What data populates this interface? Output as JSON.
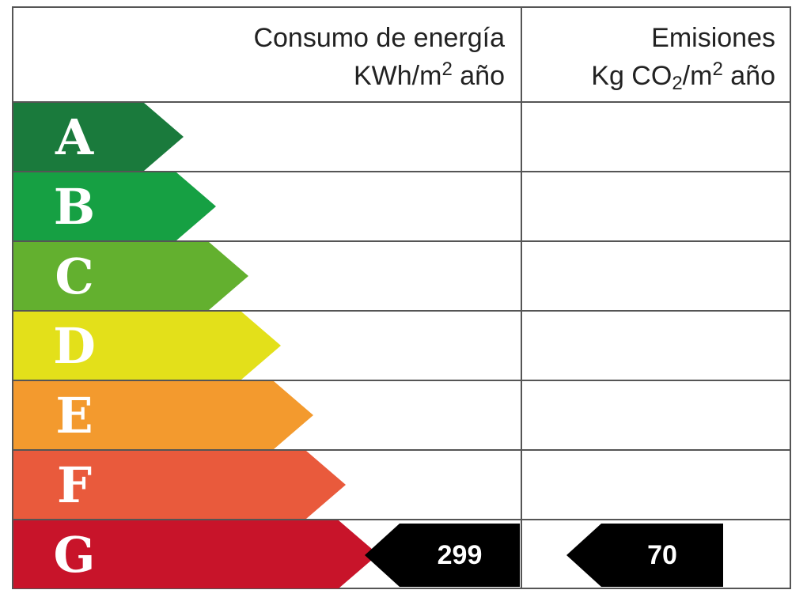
{
  "header": {
    "energy_title": "Consumo de energía",
    "energy_unit_pre": "KWh/m",
    "energy_unit_sup": "2",
    "energy_unit_post": " año",
    "emissions_title": "Emisiones",
    "emissions_unit_pre": "Kg CO",
    "emissions_unit_sub": "2",
    "emissions_unit_mid": "/m",
    "emissions_unit_sup": "2",
    "emissions_unit_post": " año"
  },
  "bands": [
    {
      "letter": "A",
      "color": "#1a7a3c"
    },
    {
      "letter": "B",
      "color": "#16a043"
    },
    {
      "letter": "C",
      "color": "#63b02f"
    },
    {
      "letter": "D",
      "color": "#e3e01a"
    },
    {
      "letter": "E",
      "color": "#f39a2e"
    },
    {
      "letter": "F",
      "color": "#e95a3c"
    },
    {
      "letter": "G",
      "color": "#c8142a"
    }
  ],
  "rating": {
    "energy_value": "299",
    "emissions_value": "70",
    "marker_color": "#000000"
  }
}
